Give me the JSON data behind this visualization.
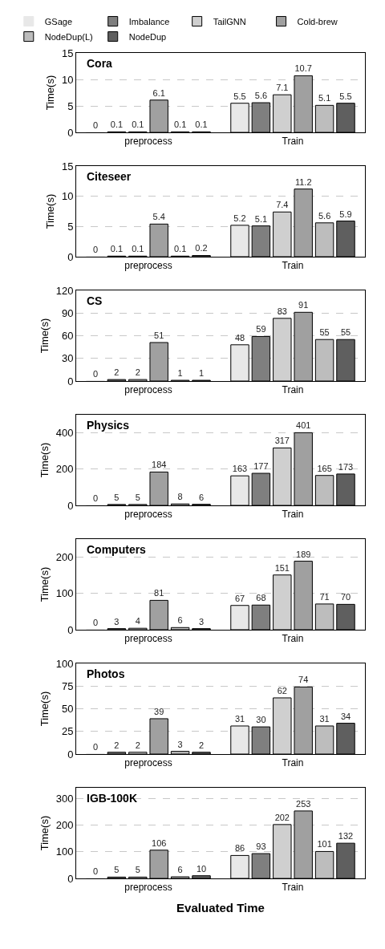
{
  "chart_data": [
    {
      "type": "bar",
      "title": "Cora",
      "ylabel": "Time(s)",
      "categories": [
        "preprocess",
        "Train"
      ],
      "ylim": [
        0,
        15
      ],
      "yticks": [
        0,
        5,
        10,
        15
      ],
      "grid": "y",
      "legend": "top",
      "data_labels": true,
      "series": [
        {
          "name": "GSage",
          "color": "#e8e8e8",
          "values": [
            0,
            5.5
          ]
        },
        {
          "name": "Imbalance",
          "color": "#7f7f7f",
          "values": [
            0.1,
            5.6
          ]
        },
        {
          "name": "TailGNN",
          "color": "#cfcfcf",
          "values": [
            0.1,
            7.1
          ]
        },
        {
          "name": "Cold-brew",
          "color": "#a0a0a0",
          "values": [
            6.1,
            10.7
          ]
        },
        {
          "name": "NodeDup(L)",
          "color": "#bdbdbd",
          "values": [
            0.1,
            5.1
          ]
        },
        {
          "name": "NodeDup",
          "color": "#5f5f5f",
          "values": [
            0.1,
            5.5
          ]
        }
      ]
    },
    {
      "type": "bar",
      "title": "Citeseer",
      "ylabel": "Time(s)",
      "categories": [
        "preprocess",
        "Train"
      ],
      "ylim": [
        0,
        15
      ],
      "yticks": [
        0,
        5,
        10,
        15
      ],
      "grid": "y",
      "data_labels": true,
      "series": [
        {
          "color": "#e8e8e8",
          "values": [
            0,
            5.2
          ]
        },
        {
          "color": "#7f7f7f",
          "values": [
            0.1,
            5.1
          ]
        },
        {
          "color": "#cfcfcf",
          "values": [
            0.1,
            7.4
          ]
        },
        {
          "color": "#a0a0a0",
          "values": [
            5.4,
            11.2
          ]
        },
        {
          "color": "#bdbdbd",
          "values": [
            0.1,
            5.6
          ]
        },
        {
          "color": "#5f5f5f",
          "values": [
            0.2,
            5.9
          ]
        }
      ]
    },
    {
      "type": "bar",
      "title": "CS",
      "ylabel": "Time(s)",
      "categories": [
        "preprocess",
        "Train"
      ],
      "ylim": [
        0,
        120
      ],
      "yticks": [
        0,
        30,
        60,
        90,
        120
      ],
      "grid": "y",
      "data_labels": true,
      "series": [
        {
          "color": "#e8e8e8",
          "values": [
            0,
            48
          ]
        },
        {
          "color": "#7f7f7f",
          "values": [
            2,
            59
          ]
        },
        {
          "color": "#cfcfcf",
          "values": [
            2,
            83
          ]
        },
        {
          "color": "#a0a0a0",
          "values": [
            51,
            91
          ]
        },
        {
          "color": "#bdbdbd",
          "values": [
            1,
            55
          ]
        },
        {
          "color": "#5f5f5f",
          "values": [
            1,
            55
          ]
        }
      ]
    },
    {
      "type": "bar",
      "title": "Physics",
      "ylabel": "Time(s)",
      "categories": [
        "preprocess",
        "Train"
      ],
      "ylim": [
        0,
        500
      ],
      "yticks": [
        0,
        200,
        400
      ],
      "grid": "y",
      "data_labels": true,
      "series": [
        {
          "color": "#e8e8e8",
          "values": [
            0,
            163
          ]
        },
        {
          "color": "#7f7f7f",
          "values": [
            5,
            177
          ]
        },
        {
          "color": "#cfcfcf",
          "values": [
            5,
            317
          ]
        },
        {
          "color": "#a0a0a0",
          "values": [
            184,
            401
          ]
        },
        {
          "color": "#bdbdbd",
          "values": [
            8,
            165
          ]
        },
        {
          "color": "#5f5f5f",
          "values": [
            6,
            173
          ]
        }
      ]
    },
    {
      "type": "bar",
      "title": "Computers",
      "ylabel": "Time(s)",
      "categories": [
        "preprocess",
        "Train"
      ],
      "ylim": [
        0,
        250
      ],
      "yticks": [
        0,
        100,
        200
      ],
      "grid": "y",
      "data_labels": true,
      "series": [
        {
          "color": "#e8e8e8",
          "values": [
            0,
            67
          ]
        },
        {
          "color": "#7f7f7f",
          "values": [
            3,
            68
          ]
        },
        {
          "color": "#cfcfcf",
          "values": [
            4,
            151
          ]
        },
        {
          "color": "#a0a0a0",
          "values": [
            81,
            189
          ]
        },
        {
          "color": "#bdbdbd",
          "values": [
            6,
            71
          ]
        },
        {
          "color": "#5f5f5f",
          "values": [
            3,
            70
          ]
        }
      ]
    },
    {
      "type": "bar",
      "title": "Photos",
      "ylabel": "Time(s)",
      "categories": [
        "preprocess",
        "Train"
      ],
      "ylim": [
        0,
        100
      ],
      "yticks": [
        0,
        25,
        50,
        75,
        100
      ],
      "grid": "y",
      "data_labels": true,
      "series": [
        {
          "color": "#e8e8e8",
          "values": [
            0,
            31
          ]
        },
        {
          "color": "#7f7f7f",
          "values": [
            2,
            30
          ]
        },
        {
          "color": "#cfcfcf",
          "values": [
            2,
            62
          ]
        },
        {
          "color": "#a0a0a0",
          "values": [
            39,
            74
          ]
        },
        {
          "color": "#bdbdbd",
          "values": [
            3,
            31
          ]
        },
        {
          "color": "#5f5f5f",
          "values": [
            2,
            34
          ]
        }
      ]
    },
    {
      "type": "bar",
      "title": "IGB-100K",
      "ylabel": "Time(s)",
      "xlabel": "Evaluated Time",
      "categories": [
        "preprocess",
        "Train"
      ],
      "ylim": [
        0,
        340
      ],
      "yticks": [
        0,
        100,
        200,
        300
      ],
      "grid": "y",
      "data_labels": true,
      "series": [
        {
          "color": "#e8e8e8",
          "values": [
            0,
            86
          ]
        },
        {
          "color": "#7f7f7f",
          "values": [
            5,
            93
          ]
        },
        {
          "color": "#cfcfcf",
          "values": [
            5,
            202
          ]
        },
        {
          "color": "#a0a0a0",
          "values": [
            106,
            253
          ]
        },
        {
          "color": "#bdbdbd",
          "values": [
            6,
            101
          ]
        },
        {
          "color": "#5f5f5f",
          "values": [
            10,
            132
          ]
        }
      ]
    }
  ]
}
